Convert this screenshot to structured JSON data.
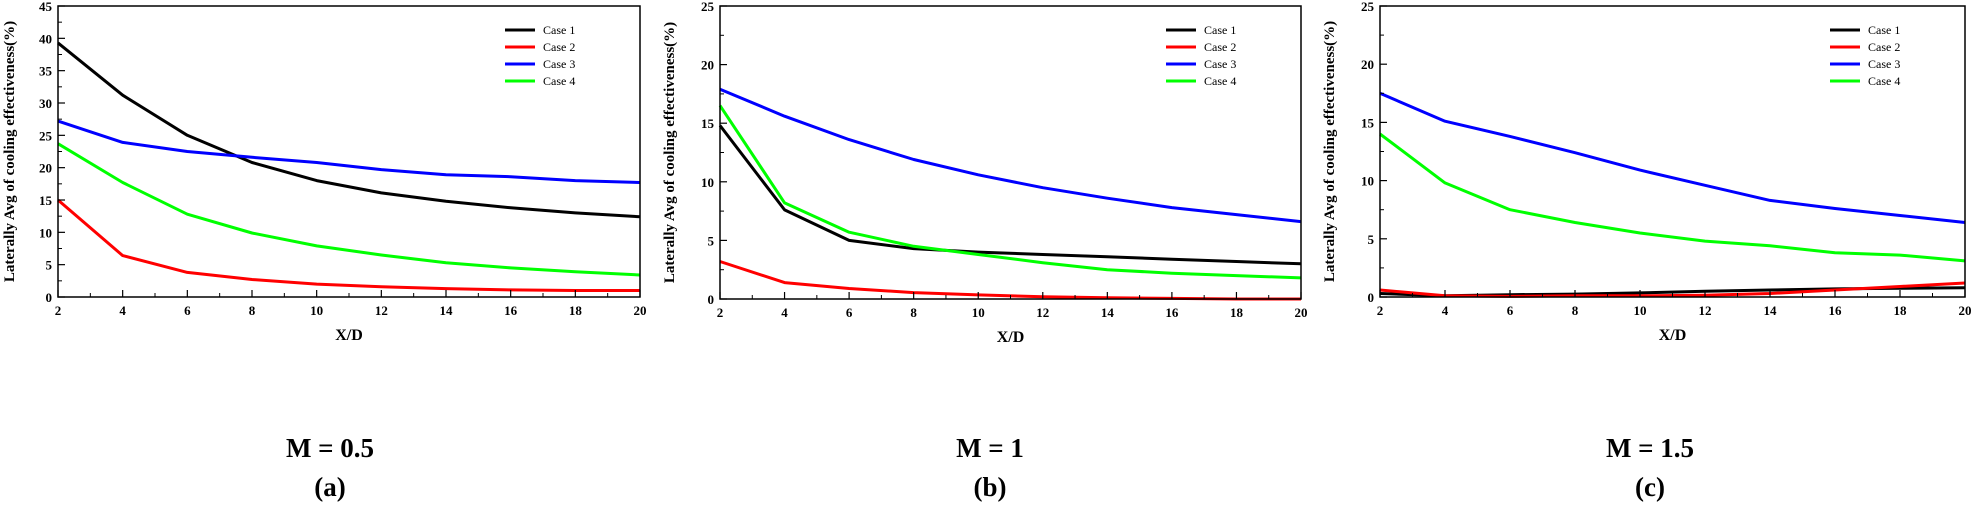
{
  "chart_data": [
    {
      "type": "line",
      "panel_label": "(a)",
      "caption": "M = 0.5",
      "xlabel": "X/D",
      "ylabel": "Laterally Avg of cooling effectiveness(%)",
      "xlim": [
        2,
        20
      ],
      "ylim": [
        0,
        45
      ],
      "xticks": [
        "2",
        "4",
        "6",
        "8",
        "10",
        "12",
        "14",
        "16",
        "18",
        "20"
      ],
      "yticks": [
        "0",
        "5",
        "10",
        "15",
        "20",
        "25",
        "30",
        "35",
        "40",
        "45"
      ],
      "legend_position": "top-right",
      "x": [
        2,
        4,
        6,
        8,
        10,
        12,
        14,
        16,
        18,
        20
      ],
      "series": [
        {
          "name": "Case 1",
          "color": "#000000",
          "values": [
            39.3,
            31.2,
            25.0,
            20.8,
            18.0,
            16.1,
            14.8,
            13.8,
            13.0,
            12.4
          ]
        },
        {
          "name": "Case 2",
          "color": "#ff0000",
          "values": [
            15.0,
            6.4,
            3.8,
            2.7,
            2.0,
            1.6,
            1.3,
            1.1,
            1.0,
            1.0
          ]
        },
        {
          "name": "Case 3",
          "color": "#0000ff",
          "values": [
            27.2,
            23.9,
            22.5,
            21.6,
            20.8,
            19.7,
            18.9,
            18.6,
            18.0,
            17.7
          ]
        },
        {
          "name": "Case 4",
          "color": "#00ff00",
          "values": [
            23.7,
            17.7,
            12.8,
            9.9,
            7.9,
            6.5,
            5.3,
            4.5,
            3.9,
            3.4
          ]
        }
      ]
    },
    {
      "type": "line",
      "panel_label": "(b)",
      "caption": "M = 1",
      "xlabel": "X/D",
      "ylabel": "Laterally Avg of cooling effectiveness(%)",
      "xlim": [
        2,
        20
      ],
      "ylim": [
        0,
        25
      ],
      "xticks": [
        "2",
        "4",
        "6",
        "8",
        "10",
        "12",
        "14",
        "16",
        "18",
        "20"
      ],
      "yticks": [
        "0",
        "5",
        "10",
        "15",
        "20",
        "25"
      ],
      "legend_position": "top-right",
      "x": [
        2,
        4,
        6,
        8,
        10,
        12,
        14,
        16,
        18,
        20
      ],
      "series": [
        {
          "name": "Case 1",
          "color": "#000000",
          "values": [
            14.8,
            7.6,
            5.0,
            4.3,
            4.0,
            3.8,
            3.6,
            3.4,
            3.2,
            3.0
          ]
        },
        {
          "name": "Case 2",
          "color": "#ff0000",
          "values": [
            3.2,
            1.4,
            0.9,
            0.55,
            0.35,
            0.2,
            0.1,
            0.05,
            0.0,
            0.0
          ]
        },
        {
          "name": "Case 3",
          "color": "#0000ff",
          "values": [
            17.9,
            15.6,
            13.6,
            11.9,
            10.6,
            9.5,
            8.6,
            7.8,
            7.2,
            6.6
          ]
        },
        {
          "name": "Case 4",
          "color": "#00ff00",
          "values": [
            16.5,
            8.2,
            5.7,
            4.5,
            3.8,
            3.1,
            2.5,
            2.2,
            2.0,
            1.8
          ]
        }
      ]
    },
    {
      "type": "line",
      "panel_label": "(c)",
      "caption": "M = 1.5",
      "xlabel": "X/D",
      "ylabel": "Laterally Avg of cooling effectiveness(%)",
      "xlim": [
        2,
        20
      ],
      "ylim": [
        0,
        25
      ],
      "xticks": [
        "2",
        "4",
        "6",
        "8",
        "10",
        "12",
        "14",
        "16",
        "18",
        "20"
      ],
      "yticks": [
        "0",
        "5",
        "10",
        "15",
        "20",
        "25"
      ],
      "legend_position": "top-right",
      "x": [
        2,
        4,
        6,
        8,
        10,
        12,
        14,
        16,
        18,
        20
      ],
      "series": [
        {
          "name": "Case 1",
          "color": "#000000",
          "values": [
            0.3,
            0.1,
            0.2,
            0.25,
            0.35,
            0.5,
            0.6,
            0.7,
            0.75,
            0.8
          ]
        },
        {
          "name": "Case 2",
          "color": "#ff0000",
          "values": [
            0.6,
            0.1,
            0.05,
            0.1,
            0.1,
            0.15,
            0.3,
            0.6,
            0.9,
            1.2
          ]
        },
        {
          "name": "Case 3",
          "color": "#0000ff",
          "values": [
            17.5,
            15.1,
            13.8,
            12.4,
            10.9,
            9.6,
            8.3,
            7.6,
            7.0,
            6.4
          ]
        },
        {
          "name": "Case 4",
          "color": "#00ff00",
          "values": [
            14.0,
            9.8,
            7.5,
            6.4,
            5.5,
            4.8,
            4.4,
            3.8,
            3.6,
            3.1
          ]
        }
      ]
    }
  ]
}
